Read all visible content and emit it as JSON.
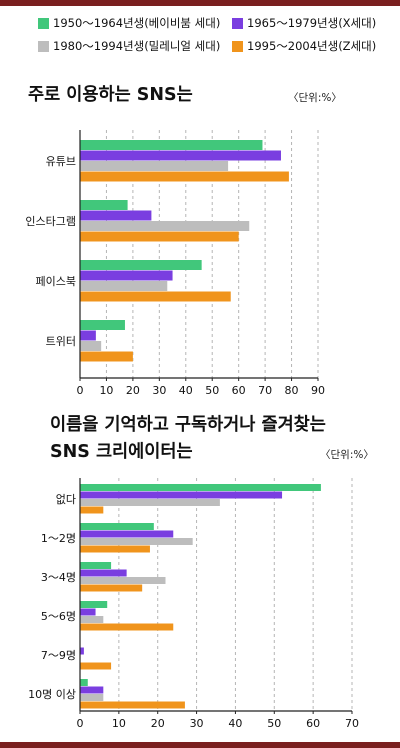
{
  "legend": [
    {
      "label": "1950～1964년생(베이비붐 세대)",
      "color": "#41c77b"
    },
    {
      "label": "1965～1979년생(X세대)",
      "color": "#7a3ee0"
    },
    {
      "label": "1980～1994년생(밀레니얼 세대)",
      "color": "#bdbdbd"
    },
    {
      "label": "1995～2004년생(Z세대)",
      "color": "#f0941c"
    }
  ],
  "chart_data": [
    {
      "type": "bar",
      "orientation": "horizontal",
      "title": "주로 이용하는 SNS는",
      "unit": "〈단위:%〉",
      "categories": [
        "유튜브",
        "인스타그램",
        "페이스북",
        "트위터"
      ],
      "series": [
        {
          "name": "1950～1964년생(베이비붐 세대)",
          "values": [
            69,
            18,
            46,
            17
          ]
        },
        {
          "name": "1965～1979년생(X세대)",
          "values": [
            76,
            27,
            35,
            6
          ]
        },
        {
          "name": "1980～1994년생(밀레니얼 세대)",
          "values": [
            56,
            64,
            33,
            8
          ]
        },
        {
          "name": "1995～2004년생(Z세대)",
          "values": [
            79,
            60,
            57,
            20
          ]
        }
      ],
      "xlim": [
        0,
        90
      ],
      "ticks": [
        0,
        10,
        20,
        30,
        40,
        50,
        60,
        70,
        80,
        90
      ],
      "grid": true
    },
    {
      "type": "bar",
      "orientation": "horizontal",
      "title": [
        "이름을 기억하고 구독하거나 즐겨찾는",
        "SNS 크리에이터는"
      ],
      "unit": "〈단위:%〉",
      "categories": [
        "없다",
        "1～2명",
        "3～4명",
        "5～6명",
        "7～9명",
        "10명 이상"
      ],
      "series": [
        {
          "name": "1950～1964년생(베이비붐 세대)",
          "values": [
            62,
            19,
            8,
            7,
            0,
            2
          ]
        },
        {
          "name": "1965～1979년생(X세대)",
          "values": [
            52,
            24,
            12,
            4,
            1,
            6
          ]
        },
        {
          "name": "1980～1994년생(밀레니얼 세대)",
          "values": [
            36,
            29,
            22,
            6,
            0,
            6
          ]
        },
        {
          "name": "1995～2004년생(Z세대)",
          "values": [
            6,
            18,
            16,
            24,
            8,
            27
          ]
        }
      ],
      "xlim": [
        0,
        70
      ],
      "ticks": [
        0,
        10,
        20,
        30,
        40,
        50,
        60,
        70
      ],
      "grid": true
    }
  ]
}
